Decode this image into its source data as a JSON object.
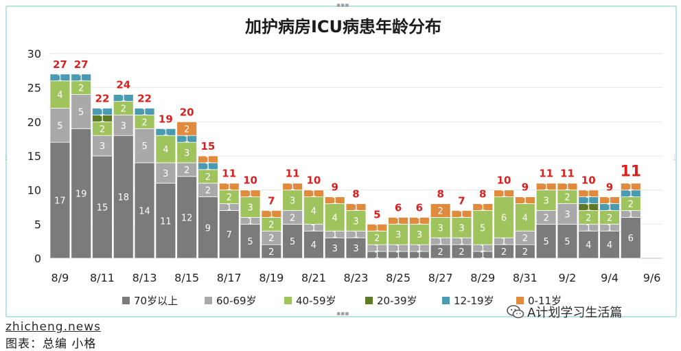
{
  "chart_data": {
    "type": "bar",
    "stacked": true,
    "title": "加护病房ICU病患年龄分布",
    "ylim": [
      0,
      30
    ],
    "yticks": [
      0,
      5,
      10,
      15,
      20,
      25,
      30
    ],
    "categories": [
      "8/9",
      "8/10",
      "8/11",
      "8/12",
      "8/13",
      "8/14",
      "8/15",
      "8/16",
      "8/17",
      "8/18",
      "8/19",
      "8/20",
      "8/21",
      "8/22",
      "8/23",
      "8/24",
      "8/25",
      "8/26",
      "8/27",
      "8/28",
      "8/29",
      "8/30",
      "8/31",
      "9/1",
      "9/2",
      "9/3",
      "9/4",
      "9/5"
    ],
    "xtick_labels": [
      "8/9",
      "8/11",
      "8/13",
      "8/15",
      "8/17",
      "8/19",
      "8/21",
      "8/23",
      "8/25",
      "8/27",
      "8/29",
      "8/31",
      "9/2",
      "9/4",
      "9/6"
    ],
    "series": [
      {
        "name": "70岁以上",
        "color": "#7b7b7b",
        "label_color": "#ffffff",
        "values": [
          17,
          19,
          15,
          18,
          14,
          11,
          12,
          9,
          7,
          5,
          2,
          5,
          4,
          3,
          3,
          1,
          1,
          1,
          2,
          2,
          1,
          2,
          2,
          5,
          5,
          4,
          4,
          6
        ]
      },
      {
        "name": "60-69岁",
        "color": "#a9a9a9",
        "label_color": "#ffffff",
        "values": [
          5,
          5,
          3,
          3,
          5,
          3,
          2,
          2,
          1,
          1,
          2,
          2,
          1,
          1,
          1,
          1,
          1,
          1,
          1,
          1,
          1,
          1,
          2,
          2,
          3,
          1,
          1,
          1
        ]
      },
      {
        "name": "40-59岁",
        "color": "#9fc45e",
        "label_color": "#ffffff",
        "values": [
          4,
          2,
          2,
          2,
          2,
          4,
          3,
          2,
          2,
          3,
          2,
          3,
          4,
          4,
          3,
          2,
          3,
          3,
          3,
          3,
          5,
          6,
          4,
          3,
          2,
          2,
          2,
          2
        ]
      },
      {
        "name": "20-39岁",
        "color": "#5e7a26",
        "label_color": "#ffffff",
        "values": [
          0,
          0,
          1,
          0,
          0,
          0,
          0,
          0,
          0,
          0,
          0,
          0,
          0,
          0,
          0,
          0,
          0,
          0,
          0,
          0,
          0,
          0,
          0,
          0,
          0,
          1,
          0,
          0
        ]
      },
      {
        "name": "12-19岁",
        "color": "#4a9bb2",
        "label_color": "#ffffff",
        "values": [
          1,
          1,
          1,
          1,
          1,
          1,
          1,
          1,
          0,
          0,
          0,
          0,
          0,
          0,
          0,
          0,
          0,
          0,
          0,
          0,
          0,
          0,
          0,
          0,
          0,
          1,
          1,
          1
        ]
      },
      {
        "name": "0-11岁",
        "color": "#e08a3e",
        "label_color": "#ffffff",
        "values": [
          0,
          0,
          0,
          0,
          0,
          0,
          2,
          1,
          1,
          1,
          1,
          1,
          1,
          1,
          1,
          1,
          1,
          1,
          2,
          1,
          1,
          1,
          1,
          1,
          1,
          1,
          1,
          1
        ]
      }
    ],
    "totals": [
      27,
      27,
      22,
      24,
      22,
      19,
      20,
      15,
      11,
      10,
      7,
      11,
      10,
      9,
      8,
      5,
      6,
      6,
      8,
      7,
      8,
      10,
      9,
      11,
      11,
      10,
      9,
      11
    ],
    "total_color": "#d8201f",
    "legend_position": "bottom",
    "grid": true
  },
  "watermark": {
    "site": "zhicheng.news",
    "caption": "图表：总编 小格"
  },
  "wechat_account": "A计划学习生活篇"
}
